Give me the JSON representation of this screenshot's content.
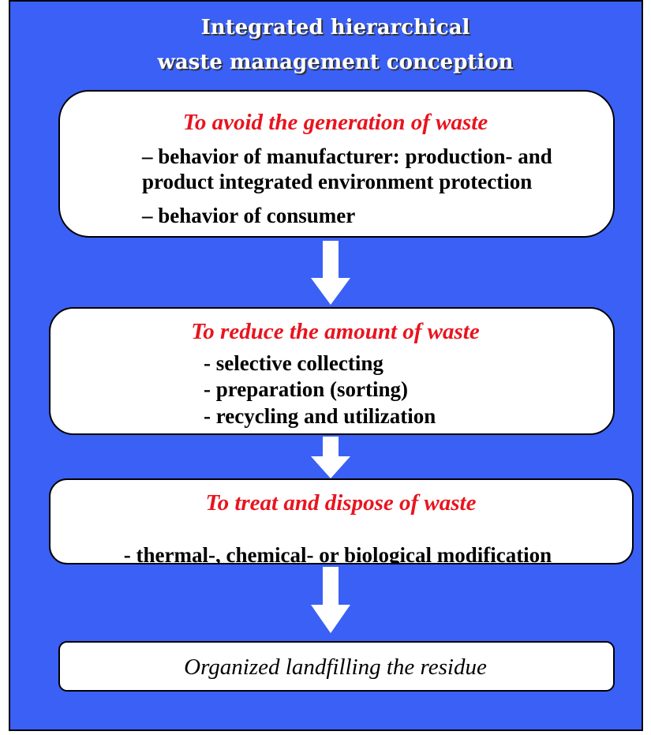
{
  "title": [
    "Integrated hierarchical",
    "waste management conception"
  ],
  "nodes": [
    {
      "title": "To avoid the generation of waste",
      "lines": [
        "– behavior of manufacturer: production- and",
        "product integrated environment protection",
        "– behavior of consumer"
      ]
    },
    {
      "title": "To reduce the amount of waste",
      "lines": [
        "- selective collecting",
        "- preparation (sorting)",
        "- recycling and utilization"
      ]
    },
    {
      "title": "To treat and dispose of waste",
      "lines": [
        "- thermal-, chemical- or biological modification"
      ]
    },
    {
      "title": "Organized landfilling the residue"
    }
  ]
}
